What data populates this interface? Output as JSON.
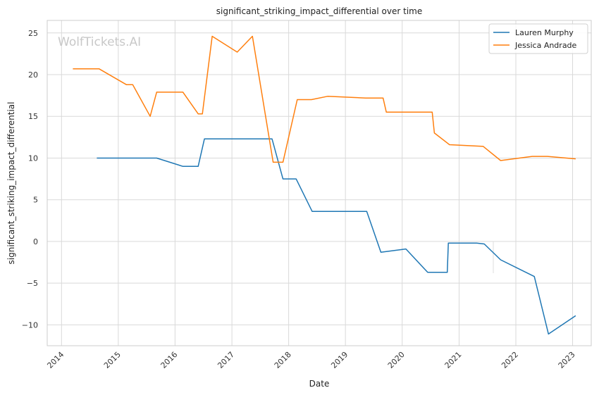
{
  "chart_data": {
    "type": "line",
    "title": "significant_striking_impact_differential over time",
    "xlabel": "Date",
    "ylabel": "significant_striking_impact_differential",
    "watermark": "WolfTickets.AI",
    "grid": true,
    "legend_position": "top-right",
    "xlim": [
      "2013-10-01",
      "2023-05-01"
    ],
    "ylim": [
      -12.5,
      26.5
    ],
    "x_ticks": [
      "2014-01-01",
      "2015-01-01",
      "2016-01-01",
      "2017-01-01",
      "2018-01-01",
      "2019-01-01",
      "2020-01-01",
      "2021-01-01",
      "2022-01-01",
      "2023-01-01"
    ],
    "x_tick_labels": [
      "2014",
      "2015",
      "2016",
      "2017",
      "2018",
      "2019",
      "2020",
      "2021",
      "2022",
      "2023"
    ],
    "y_ticks": [
      -10,
      -5,
      0,
      5,
      10,
      15,
      20,
      25
    ],
    "y_tick_labels": [
      "−10",
      "−5",
      "0",
      "5",
      "10",
      "15",
      "20",
      "25"
    ],
    "series": [
      {
        "name": "Lauren Murphy",
        "color": "#1f77b4",
        "points": [
          [
            "2014-08-16",
            10.0
          ],
          [
            "2015-09-05",
            10.0
          ],
          [
            "2016-02-21",
            9.0
          ],
          [
            "2016-05-29",
            9.0
          ],
          [
            "2016-07-08",
            12.3
          ],
          [
            "2017-09-16",
            12.3
          ],
          [
            "2017-11-25",
            7.5
          ],
          [
            "2018-02-18",
            7.5
          ],
          [
            "2018-06-01",
            3.6
          ],
          [
            "2019-05-18",
            3.6
          ],
          [
            "2019-08-17",
            -1.3
          ],
          [
            "2020-01-25",
            -0.9
          ],
          [
            "2020-06-13",
            -3.7
          ],
          [
            "2020-10-17",
            -3.7
          ],
          [
            "2020-10-24",
            -0.2
          ],
          [
            "2021-04-24",
            -0.2
          ],
          [
            "2021-06-12",
            -0.3
          ],
          [
            "2021-09-25",
            -2.2
          ],
          [
            "2022-04-30",
            -4.2
          ],
          [
            "2022-07-30",
            -11.1
          ],
          [
            "2023-01-21",
            -8.9
          ]
        ]
      },
      {
        "name": "Jessica Andrade",
        "color": "#ff7f0e",
        "points": [
          [
            "2014-03-15",
            20.7
          ],
          [
            "2014-08-30",
            20.7
          ],
          [
            "2015-02-22",
            18.8
          ],
          [
            "2015-04-04",
            18.8
          ],
          [
            "2015-07-25",
            15.0
          ],
          [
            "2015-09-05",
            17.9
          ],
          [
            "2016-02-21",
            17.9
          ],
          [
            "2016-05-29",
            15.3
          ],
          [
            "2016-06-25",
            15.3
          ],
          [
            "2016-08-27",
            24.6
          ],
          [
            "2017-02-04",
            22.7
          ],
          [
            "2017-05-13",
            24.6
          ],
          [
            "2017-09-23",
            9.5
          ],
          [
            "2017-11-25",
            9.5
          ],
          [
            "2018-02-25",
            17.0
          ],
          [
            "2018-05-27",
            17.0
          ],
          [
            "2018-09-08",
            17.4
          ],
          [
            "2019-05-11",
            17.2
          ],
          [
            "2019-08-31",
            17.2
          ],
          [
            "2019-09-21",
            15.5
          ],
          [
            "2020-07-12",
            15.5
          ],
          [
            "2020-07-26",
            13.0
          ],
          [
            "2020-10-31",
            11.6
          ],
          [
            "2021-06-05",
            11.4
          ],
          [
            "2021-09-25",
            9.7
          ],
          [
            "2022-04-16",
            10.2
          ],
          [
            "2022-07-23",
            10.2
          ],
          [
            "2023-01-21",
            9.9
          ]
        ]
      }
    ]
  }
}
